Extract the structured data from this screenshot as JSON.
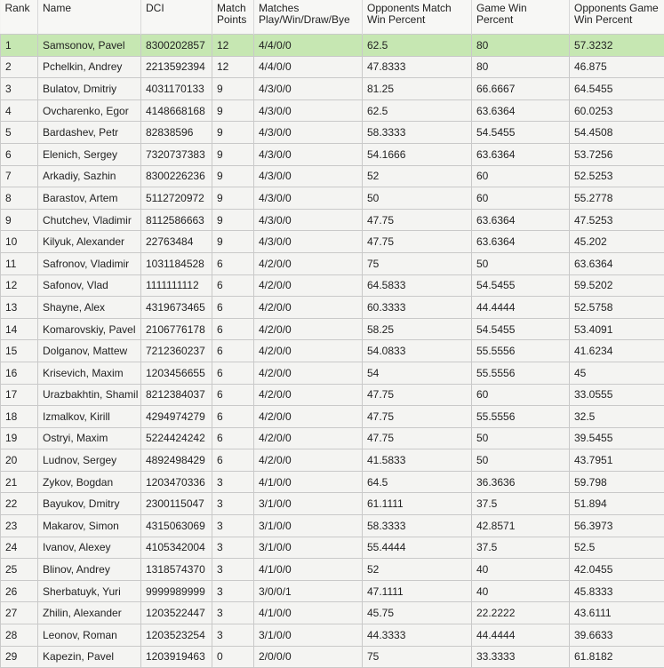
{
  "table": {
    "header": [
      "Rank",
      "Name",
      "DCI",
      "Match\nPoints",
      "Matches\nPlay/Win/Draw/Bye",
      "Opponents Match\nWin Percent",
      "Game Win\nPercent",
      "Opponents Game\nWin Percent"
    ],
    "rows": [
      [
        "1",
        "Samsonov, Pavel",
        "8300202857",
        "12",
        "4/4/0/0",
        "62.5",
        "80",
        "57.3232"
      ],
      [
        "2",
        "Pchelkin, Andrey",
        "2213592394",
        "12",
        "4/4/0/0",
        "47.8333",
        "80",
        "46.875"
      ],
      [
        "3",
        "Bulatov, Dmitriy",
        "4031170133",
        "9",
        "4/3/0/0",
        "81.25",
        "66.6667",
        "64.5455"
      ],
      [
        "4",
        "Ovcharenko, Egor",
        "4148668168",
        "9",
        "4/3/0/0",
        "62.5",
        "63.6364",
        "60.0253"
      ],
      [
        "5",
        "Bardashev, Petr",
        "82838596",
        "9",
        "4/3/0/0",
        "58.3333",
        "54.5455",
        "54.4508"
      ],
      [
        "6",
        "Elenich, Sergey",
        "7320737383",
        "9",
        "4/3/0/0",
        "54.1666",
        "63.6364",
        "53.7256"
      ],
      [
        "7",
        "Arkadiy, Sazhin",
        "8300226236",
        "9",
        "4/3/0/0",
        "52",
        "60",
        "52.5253"
      ],
      [
        "8",
        "Barastov, Artem",
        "5112720972",
        "9",
        "4/3/0/0",
        "50",
        "60",
        "55.2778"
      ],
      [
        "9",
        "Chutchev, Vladimir",
        "8112586663",
        "9",
        "4/3/0/0",
        "47.75",
        "63.6364",
        "47.5253"
      ],
      [
        "10",
        "Kilyuk, Alexander",
        "22763484",
        "9",
        "4/3/0/0",
        "47.75",
        "63.6364",
        "45.202"
      ],
      [
        "11",
        "Safronov, Vladimir",
        "1031184528",
        "6",
        "4/2/0/0",
        "75",
        "50",
        "63.6364"
      ],
      [
        "12",
        "Safonov, Vlad",
        "1111111112",
        "6",
        "4/2/0/0",
        "64.5833",
        "54.5455",
        "59.5202"
      ],
      [
        "13",
        "Shayne, Alex",
        "4319673465",
        "6",
        "4/2/0/0",
        "60.3333",
        "44.4444",
        "52.5758"
      ],
      [
        "14",
        "Komarovskiy, Pavel",
        "2106776178",
        "6",
        "4/2/0/0",
        "58.25",
        "54.5455",
        "53.4091"
      ],
      [
        "15",
        "Dolganov, Mattew",
        "7212360237",
        "6",
        "4/2/0/0",
        "54.0833",
        "55.5556",
        "41.6234"
      ],
      [
        "16",
        "Krisevich, Maxim",
        "1203456655",
        "6",
        "4/2/0/0",
        "54",
        "55.5556",
        "45"
      ],
      [
        "17",
        "Urazbakhtin, Shamil",
        "8212384037",
        "6",
        "4/2/0/0",
        "47.75",
        "60",
        "33.0555"
      ],
      [
        "18",
        "Izmalkov, Kirill",
        "4294974279",
        "6",
        "4/2/0/0",
        "47.75",
        "55.5556",
        "32.5"
      ],
      [
        "19",
        "Ostryi, Maxim",
        "5224424242",
        "6",
        "4/2/0/0",
        "47.75",
        "50",
        "39.5455"
      ],
      [
        "20",
        "Ludnov, Sergey",
        "4892498429",
        "6",
        "4/2/0/0",
        "41.5833",
        "50",
        "43.7951"
      ],
      [
        "21",
        "Zykov, Bogdan",
        "1203470336",
        "3",
        "4/1/0/0",
        "64.5",
        "36.3636",
        "59.798"
      ],
      [
        "22",
        "Bayukov, Dmitry",
        "2300115047",
        "3",
        "3/1/0/0",
        "61.1111",
        "37.5",
        "51.894"
      ],
      [
        "23",
        "Makarov, Simon",
        "4315063069",
        "3",
        "3/1/0/0",
        "58.3333",
        "42.8571",
        "56.3973"
      ],
      [
        "24",
        "Ivanov, Alexey",
        "4105342004",
        "3",
        "3/1/0/0",
        "55.4444",
        "37.5",
        "52.5"
      ],
      [
        "25",
        "Blinov, Andrey",
        "1318574370",
        "3",
        "4/1/0/0",
        "52",
        "40",
        "42.0455"
      ],
      [
        "26",
        "Sherbatuyk, Yuri",
        "9999989999",
        "3",
        "3/0/0/1",
        "47.1111",
        "40",
        "45.8333"
      ],
      [
        "27",
        "Zhilin, Alexander",
        "1203522447",
        "3",
        "4/1/0/0",
        "45.75",
        "22.2222",
        "43.6111"
      ],
      [
        "28",
        "Leonov, Roman",
        "1203523254",
        "3",
        "3/1/0/0",
        "44.3333",
        "44.4444",
        "39.6633"
      ],
      [
        "29",
        "Kapezin, Pavel",
        "1203919463",
        "0",
        "2/0/0/0",
        "75",
        "33.3333",
        "61.8182"
      ]
    ]
  }
}
